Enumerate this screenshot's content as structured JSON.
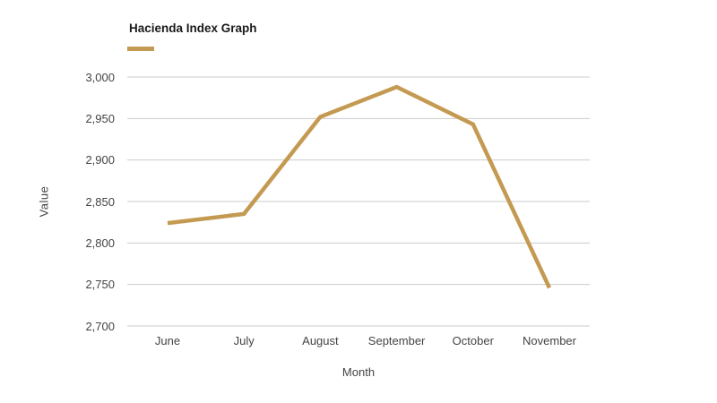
{
  "chart_data": {
    "type": "line",
    "title": "Hacienda Index Graph",
    "xlabel": "Month",
    "ylabel": "Value",
    "categories": [
      "June",
      "July",
      "August",
      "September",
      "October",
      "November"
    ],
    "series": [
      {
        "color": "#c49a52",
        "values": [
          2824,
          2835,
          2952,
          2988,
          2943,
          2746
        ]
      }
    ],
    "ylim": [
      2700,
      3000
    ],
    "ytick_step": 50,
    "ytick_labels": [
      "3,000",
      "2,950",
      "2,900",
      "2,850",
      "2,800",
      "2,750",
      "2,700"
    ],
    "grid": true,
    "legend_position": "top-left",
    "colors": {
      "line": "#c49a52",
      "gridline": "#cccccc",
      "tick_label": "#444444",
      "axis_title": "#444444",
      "title": "#1a1a1a",
      "background": "#ffffff"
    }
  }
}
